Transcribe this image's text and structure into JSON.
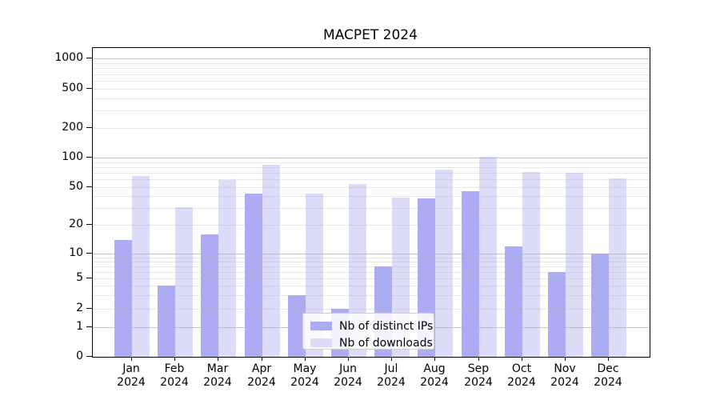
{
  "chart_data": {
    "type": "bar",
    "title": "MACPET 2024",
    "categories": [
      "Jan 2024",
      "Feb 2024",
      "Mar 2024",
      "Apr 2024",
      "May 2024",
      "Jun 2024",
      "Jul 2024",
      "Aug 2024",
      "Sep 2024",
      "Oct 2024",
      "Nov 2024",
      "Dec 2024"
    ],
    "series": [
      {
        "name": "Nb of distinct IPs",
        "color": "#acacf5",
        "values": [
          14,
          4,
          16,
          43,
          3,
          2,
          7,
          38,
          45,
          12,
          6,
          10
        ]
      },
      {
        "name": "Nb of downloads",
        "color": "#dcdcf8",
        "values": [
          65,
          31,
          59,
          85,
          43,
          54,
          39,
          75,
          101,
          72,
          70,
          61
        ]
      }
    ],
    "xlabel": "",
    "ylabel": "",
    "yscale": "symlog",
    "ylim": [
      0,
      1000
    ],
    "yticks": [
      0,
      1,
      2,
      5,
      10,
      20,
      50,
      100,
      200,
      500,
      1000
    ],
    "grid": true,
    "legend_position": "lower center"
  },
  "colors": {
    "bar_ips": "#acacf5",
    "bar_downloads": "#dcdcf8",
    "grid_major": "#c4c4c4",
    "grid_minor": "#e7e7e7",
    "spine": "#000000",
    "legend_border": "#cfcfcf"
  }
}
